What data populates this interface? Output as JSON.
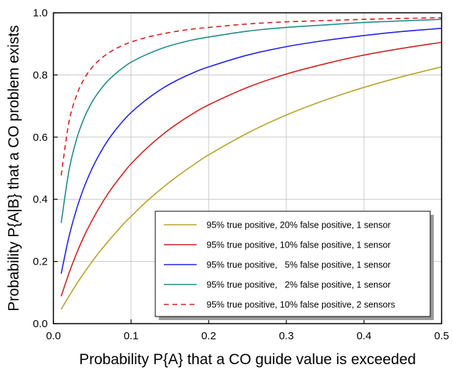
{
  "chart_data": {
    "type": "line",
    "title": "",
    "xlabel": "Probability P{A} that a CO guide value is exceeded",
    "ylabel": "Probability P{A|B} that a CO problem exists",
    "xlim": [
      0.0,
      0.5
    ],
    "ylim": [
      0.0,
      1.0
    ],
    "xticks": [
      0.0,
      0.1,
      0.2,
      0.3,
      0.4,
      0.5
    ],
    "xtick_labels": [
      "0.0",
      "0.1",
      "0.2",
      "0.3",
      "0.4",
      "0.5"
    ],
    "yticks": [
      0.0,
      0.2,
      0.4,
      0.6,
      0.8,
      1.0
    ],
    "ytick_labels": [
      "0.0",
      "0.2",
      "0.4",
      "0.6",
      "0.8",
      "1.0"
    ],
    "grid": true,
    "legend_position": "bottom-right",
    "x": [
      0.01,
      0.02,
      0.03,
      0.04,
      0.05,
      0.06,
      0.07,
      0.08,
      0.09,
      0.1,
      0.12,
      0.14,
      0.16,
      0.18,
      0.2,
      0.25,
      0.3,
      0.35,
      0.4,
      0.45,
      0.5
    ],
    "series": [
      {
        "name": "95% true positive, 20% false positive, 1 sensor",
        "color": "#b5a22a",
        "dash": "solid",
        "values": [
          0.046,
          0.088,
          0.128,
          0.165,
          0.2,
          0.233,
          0.263,
          0.292,
          0.32,
          0.345,
          0.393,
          0.436,
          0.475,
          0.51,
          0.543,
          0.613,
          0.671,
          0.719,
          0.76,
          0.795,
          0.826
        ]
      },
      {
        "name": "95% true positive, 10% false positive, 1 sensor",
        "color": "#d01f1f",
        "dash": "solid",
        "values": [
          0.088,
          0.162,
          0.227,
          0.284,
          0.333,
          0.377,
          0.417,
          0.452,
          0.484,
          0.514,
          0.564,
          0.607,
          0.644,
          0.676,
          0.704,
          0.76,
          0.803,
          0.836,
          0.864,
          0.886,
          0.905
        ]
      },
      {
        "name": "95% true positive,   5% false positive, 1 sensor",
        "color": "#1f1fe8",
        "dash": "solid",
        "values": [
          0.161,
          0.279,
          0.37,
          0.442,
          0.5,
          0.548,
          0.589,
          0.623,
          0.653,
          0.679,
          0.721,
          0.756,
          0.784,
          0.807,
          0.826,
          0.864,
          0.891,
          0.911,
          0.927,
          0.94,
          0.95
        ]
      },
      {
        "name": "95% true positive,   2% false positive, 1 sensor",
        "color": "#1e8a8a",
        "dash": "solid",
        "values": [
          0.324,
          0.492,
          0.595,
          0.664,
          0.714,
          0.751,
          0.781,
          0.804,
          0.824,
          0.841,
          0.866,
          0.886,
          0.901,
          0.913,
          0.922,
          0.941,
          0.953,
          0.961,
          0.969,
          0.974,
          0.979
        ]
      },
      {
        "name": "95% true positive, 10% false positive, 2 sensors",
        "color": "#d01f1f",
        "dash": "dashed",
        "values": [
          0.477,
          0.648,
          0.736,
          0.789,
          0.825,
          0.85,
          0.869,
          0.884,
          0.896,
          0.906,
          0.921,
          0.932,
          0.941,
          0.948,
          0.953,
          0.964,
          0.971,
          0.975,
          0.979,
          0.982,
          0.984
        ]
      }
    ]
  }
}
